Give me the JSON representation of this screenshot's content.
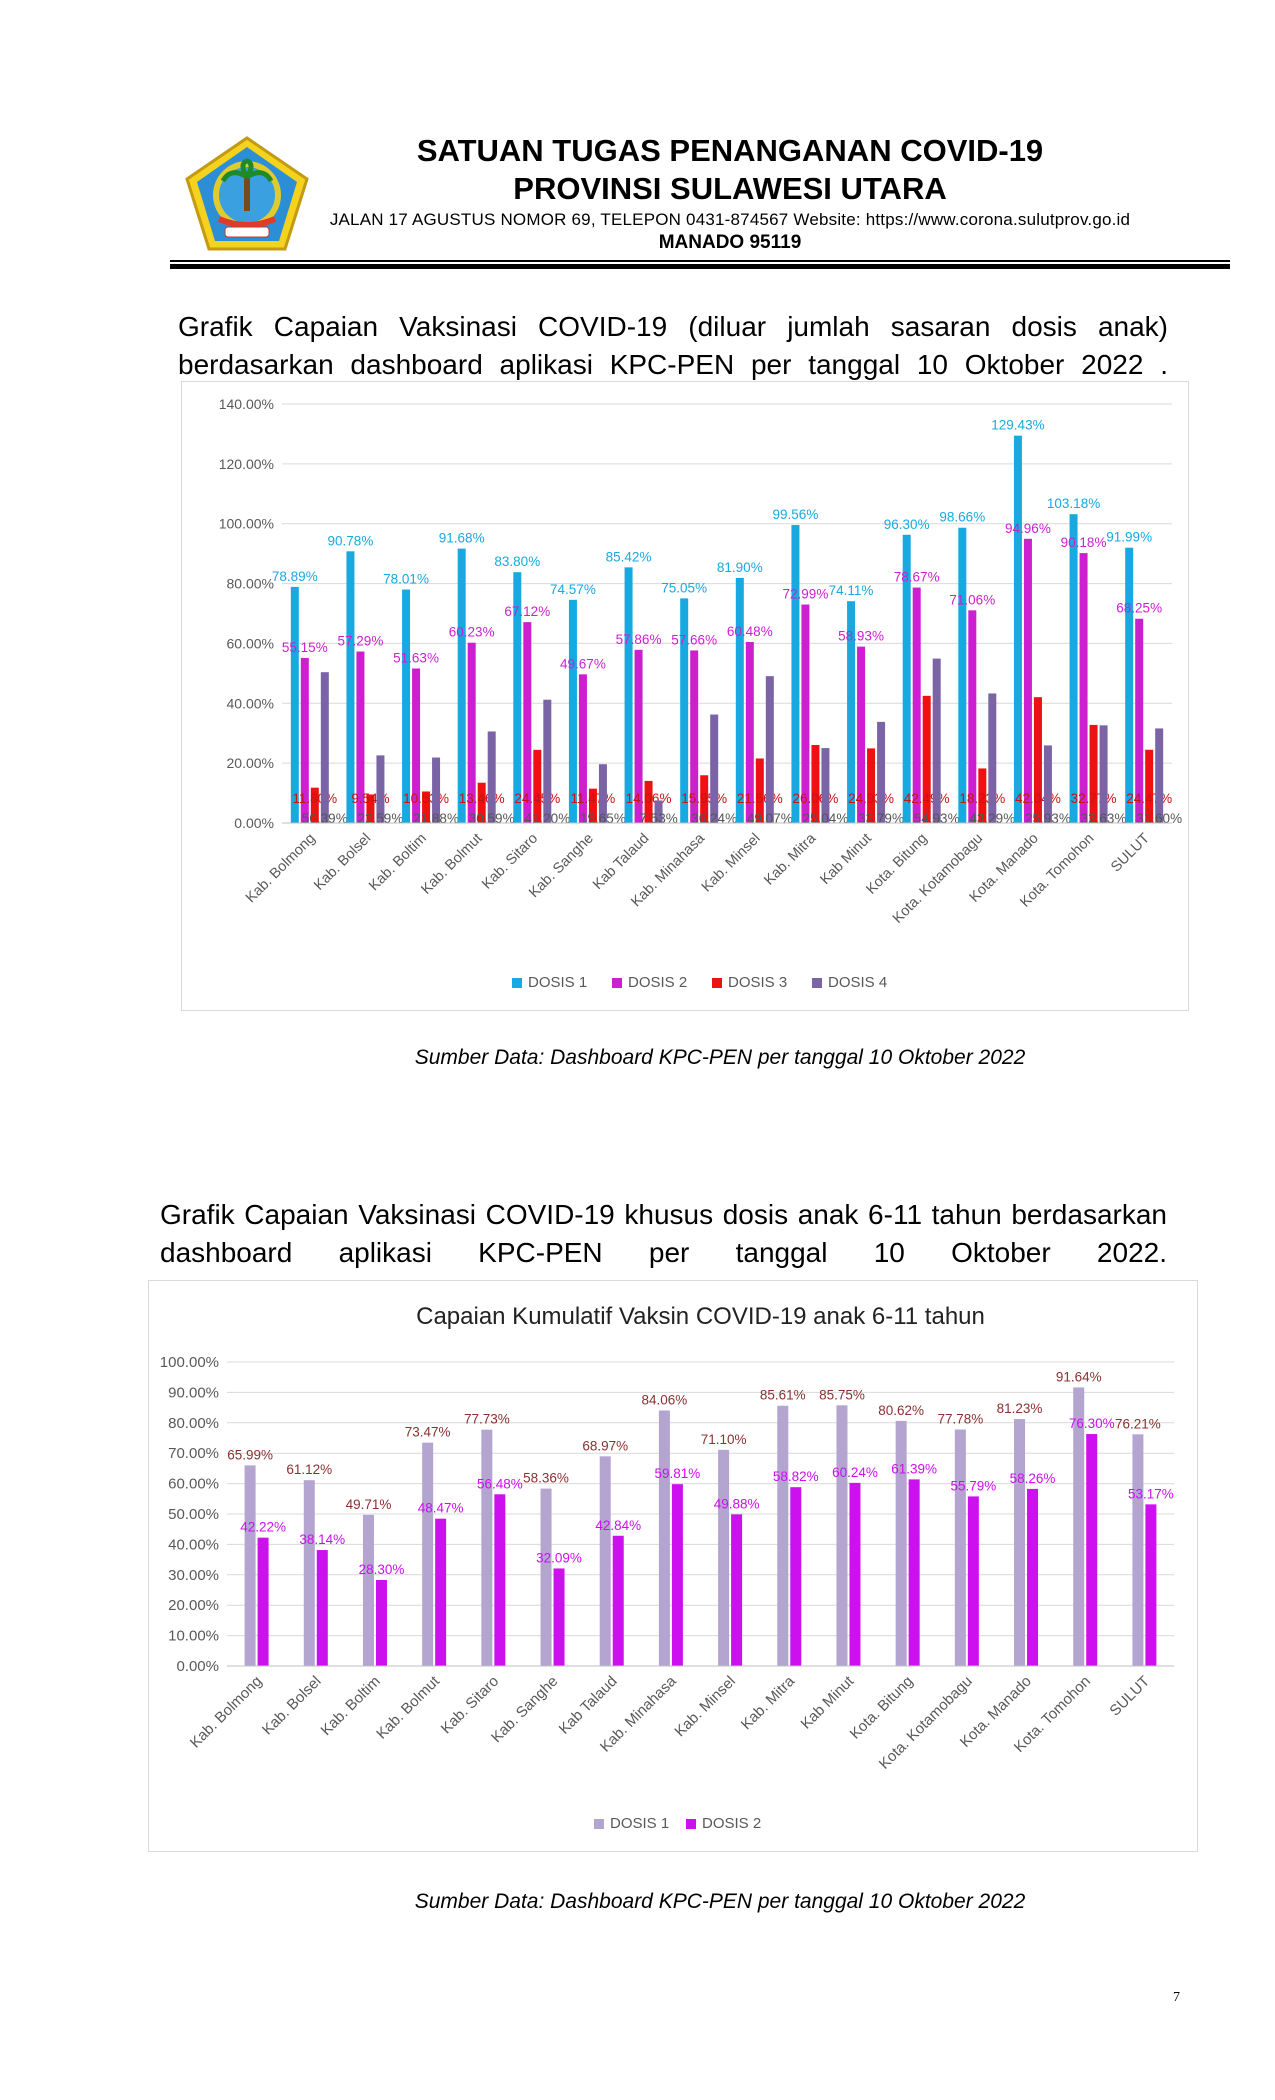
{
  "header": {
    "title_line1": "SATUAN TUGAS PENANGANAN COVID-19",
    "title_line2": "PROVINSI SULAWESI UTARA",
    "address": "JALAN 17 AGUSTUS NOMOR 69, TELEPON 0431-874567 Website: https://www.corona.sulutprov.go.id",
    "city": "MANADO  95119"
  },
  "paragraph1": "Grafik Capaian Vaksinasi COVID-19 (diluar jumlah sasaran dosis anak) berdasarkan dashboard aplikasi KPC-PEN per tanggal 10 Oktober 2022 .",
  "paragraph2": "Grafik Capaian Vaksinasi COVID-19 khusus dosis anak 6-11 tahun berdasarkan dashboard aplikasi KPC-PEN per tanggal 10 Oktober 2022.",
  "source1": "Sumber Data: Dashboard KPC-PEN per tanggal 10 Oktober 2022",
  "source2": "Sumber Data: Dashboard KPC-PEN per tanggal 10 Oktober 2022",
  "page_number": "7",
  "chart_data": [
    {
      "type": "bar",
      "title": "",
      "categories": [
        "Kab. Bolmong",
        "Kab. Bolsel",
        "Kab. Boltim",
        "Kab. Bolmut",
        "Kab. Sitaro",
        "Kab. Sanghe",
        "Kab Talaud",
        "Kab. Minahasa",
        "Kab. Minsel",
        "Kab. Mitra",
        "Kab Minut",
        "Kota. Bitung",
        "Kota. Kotamobagu",
        "Kota. Manado",
        "Kota. Tomohon",
        "SULUT"
      ],
      "ylim": [
        0,
        140
      ],
      "yticks": [
        "0.00%",
        "20.00%",
        "40.00%",
        "60.00%",
        "80.00%",
        "100.00%",
        "120.00%",
        "140.00%"
      ],
      "legend_position": "bottom",
      "grid": true,
      "series": [
        {
          "name": "DOSIS 1",
          "color": "#17a9e0",
          "label_color": "#17a9e0",
          "values": [
            78.89,
            90.78,
            78.01,
            91.68,
            83.8,
            74.57,
            85.42,
            75.05,
            81.9,
            99.56,
            74.11,
            96.3,
            98.66,
            129.43,
            103.18,
            91.99
          ],
          "labels": [
            "78.89%",
            "90.78%",
            "78.01%",
            "91.68%",
            "83.80%",
            "74.57%",
            "85.42%",
            "75.05%",
            "81.90%",
            "99.56%",
            "74.11%",
            "96.30%",
            "98.66%",
            "129.43%",
            "103.18%",
            "91.99%"
          ]
        },
        {
          "name": "DOSIS 2",
          "color": "#cc1fd0",
          "label_color": "#cc1fd0",
          "values": [
            55.15,
            57.29,
            51.63,
            60.23,
            67.12,
            49.67,
            57.86,
            57.66,
            60.48,
            72.99,
            58.93,
            78.67,
            71.06,
            94.96,
            90.18,
            68.25
          ],
          "labels": [
            "55.15%",
            "57.29%",
            "51.63%",
            "60.23%",
            "67.12%",
            "49.67%",
            "57.86%",
            "57.66%",
            "60.48%",
            "72.99%",
            "58.93%",
            "78.67%",
            "71.06%",
            "94.96%",
            "90.18%",
            "68.25%"
          ]
        },
        {
          "name": "DOSIS 3",
          "color": "#ee1111",
          "label_color": "#cc1111",
          "values": [
            11.8,
            9.54,
            10.53,
            13.46,
            24.45,
            11.47,
            14.06,
            15.95,
            21.56,
            26.06,
            24.93,
            42.49,
            18.23,
            42.04,
            32.77,
            24.47
          ],
          "labels": [
            "11.80%",
            "9.54%",
            "10.53%",
            "13.46%",
            "24.45%",
            "11.47%",
            "14.06%",
            "15.95%",
            "21.56%",
            "26.06%",
            "24.93%",
            "42.49%",
            "18.23%",
            "42.04%",
            "32.77%",
            "24.47%"
          ]
        },
        {
          "name": "DOSIS 4",
          "color": "#7b64a6",
          "label_color": "#555555",
          "values": [
            50.39,
            22.59,
            21.88,
            30.59,
            41.2,
            19.65,
            7.53,
            36.24,
            49.07,
            25.04,
            33.79,
            54.93,
            43.29,
            25.93,
            32.63,
            31.6
          ],
          "labels": [
            "50.39%",
            "22.59%",
            "21.88%",
            "30.59%",
            "41.20%",
            "19.65%",
            "7.53%",
            "36.24%",
            "49.07%",
            "25.04%",
            "33.79%",
            "54.93%",
            "43.29%",
            "25.93%",
            "32.63%",
            "31.60%"
          ]
        }
      ]
    },
    {
      "type": "bar",
      "title": "Capaian Kumulatif Vaksin COVID-19 anak 6-11 tahun",
      "categories": [
        "Kab. Bolmong",
        "Kab. Bolsel",
        "Kab. Boltim",
        "Kab. Bolmut",
        "Kab. Sitaro",
        "Kab. Sanghe",
        "Kab Talaud",
        "Kab. Minahasa",
        "Kab. Minsel",
        "Kab. Mitra",
        "Kab Minut",
        "Kota. Bitung",
        "Kota. Kotamobagu",
        "Kota. Manado",
        "Kota. Tomohon",
        "SULUT"
      ],
      "ylim": [
        0,
        100
      ],
      "yticks": [
        "0.00%",
        "10.00%",
        "20.00%",
        "30.00%",
        "40.00%",
        "50.00%",
        "60.00%",
        "70.00%",
        "80.00%",
        "90.00%",
        "100.00%"
      ],
      "legend_position": "bottom",
      "grid": true,
      "series": [
        {
          "name": "DOSIS 1",
          "color": "#b4a4d0",
          "label_color": "#8b3030",
          "values": [
            65.99,
            61.12,
            49.71,
            73.47,
            77.73,
            58.36,
            68.97,
            84.06,
            71.1,
            85.61,
            85.75,
            80.62,
            77.78,
            81.23,
            91.64,
            76.21
          ],
          "labels": [
            "65.99%",
            "61.12%",
            "49.71%",
            "73.47%",
            "77.73%",
            "58.36%",
            "68.97%",
            "84.06%",
            "71.10%",
            "85.61%",
            "85.75%",
            "80.62%",
            "77.78%",
            "81.23%",
            "91.64%",
            "76.21%"
          ]
        },
        {
          "name": "DOSIS 2",
          "color": "#cc10ee",
          "label_color": "#cc10ee",
          "values": [
            42.22,
            38.14,
            28.3,
            48.47,
            56.48,
            32.09,
            42.84,
            59.81,
            49.88,
            58.82,
            60.24,
            61.39,
            55.79,
            58.26,
            76.3,
            53.17
          ],
          "labels": [
            "42.22%",
            "38.14%",
            "28.30%",
            "48.47%",
            "56.48%",
            "32.09%",
            "42.84%",
            "59.81%",
            "49.88%",
            "58.82%",
            "60.24%",
            "61.39%",
            "55.79%",
            "58.26%",
            "76.30%",
            "53.17%"
          ]
        }
      ]
    }
  ]
}
